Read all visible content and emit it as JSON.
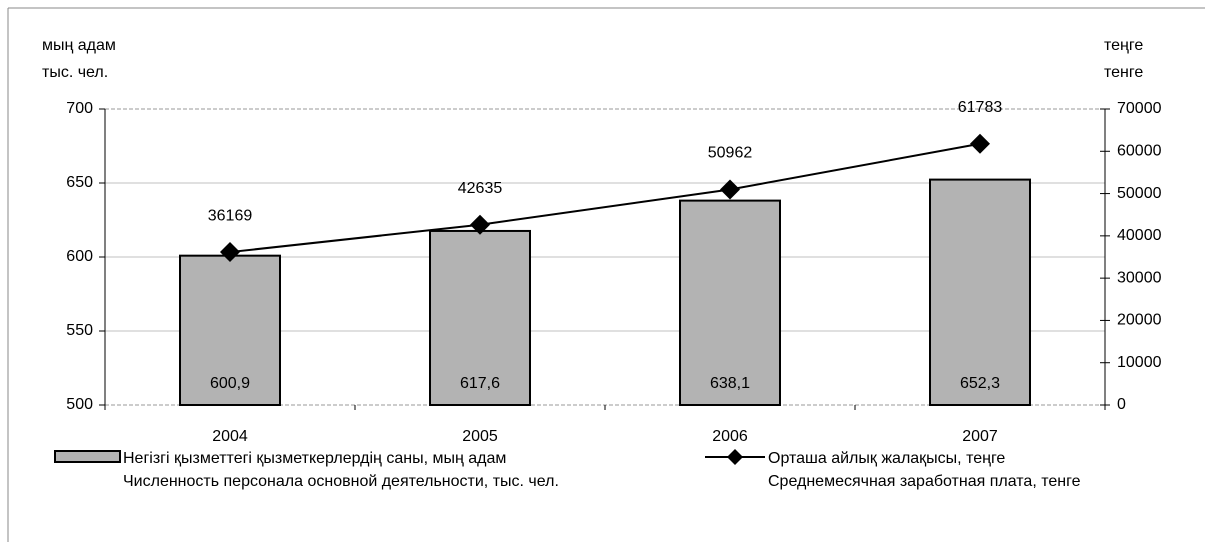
{
  "chart_data": {
    "type": "bar",
    "y_label": [
      "мың адам",
      "тыс. чел."
    ],
    "y2_label": [
      "теңге",
      "тенге"
    ],
    "categories": [
      "2004",
      "2005",
      "2006",
      "2007"
    ],
    "series": [
      {
        "name": [
          "Негізгі қызметтегі қызметкерлердің саны, мың адам",
          "Численность персонала основной деятельности, тыс. чел."
        ],
        "type": "bar",
        "color": "#b3b3b3",
        "values": [
          600.9,
          617.6,
          638.1,
          652.3
        ],
        "value_labels": [
          "600,9",
          "617,6",
          "638,1",
          "652,3"
        ]
      },
      {
        "name": [
          "Орташа айлық жалақысы, теңге",
          "Среднемесячная заработная плата, тенге"
        ],
        "type": "line",
        "axis": "y2",
        "color": "#000000",
        "values": [
          36169,
          42635,
          50962,
          61783
        ]
      }
    ],
    "ylim": [
      500,
      700
    ],
    "yticks": [
      500,
      550,
      600,
      650,
      700
    ],
    "y2lim": [
      0,
      70000
    ],
    "y2ticks": [
      0,
      10000,
      20000,
      30000,
      40000,
      50000,
      60000,
      70000
    ],
    "grid": true
  }
}
